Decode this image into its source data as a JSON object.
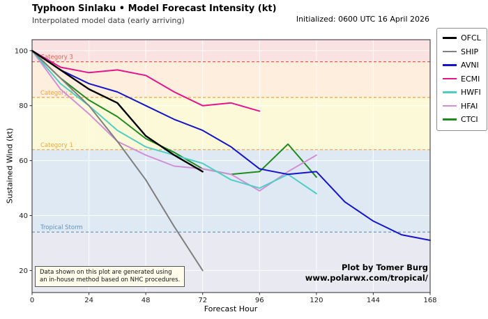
{
  "chart_data": {
    "type": "line",
    "title": "Typhoon Sinlaku • Model Forecast Intensity (kt)",
    "subtitle": "Interpolated model data (early arriving)",
    "initialized": "Initialized: 0600 UTC 16 April 2026",
    "xlabel": "Forecast Hour",
    "ylabel": "Sustained Wind (kt)",
    "xlim": [
      0,
      168
    ],
    "ylim": [
      12,
      104
    ],
    "xticks": [
      0,
      24,
      48,
      72,
      96,
      120,
      144,
      168
    ],
    "yticks": [
      20,
      40,
      60,
      80,
      100
    ],
    "grid": true,
    "grid_color": "#ffffff",
    "legend_position": "outside-right",
    "bands": [
      {
        "name": "category-3",
        "from": 96,
        "to": 104,
        "color": "#fae2e2"
      },
      {
        "name": "category-2",
        "from": 83,
        "to": 96,
        "color": "#fdeedd"
      },
      {
        "name": "category-1",
        "from": 64,
        "to": 83,
        "color": "#fcf9d8"
      },
      {
        "name": "tropical-storm",
        "from": 34,
        "to": 64,
        "color": "#dfe9f4"
      },
      {
        "name": "tropical-depression",
        "from": 12,
        "to": 34,
        "color": "#e9e9f2"
      }
    ],
    "thresholds": [
      {
        "name": "category-3",
        "value": 96,
        "label": "Category 3",
        "color": "#e2604d"
      },
      {
        "name": "category-2",
        "value": 83,
        "label": "Category 2",
        "color": "#f2a43c"
      },
      {
        "name": "category-1",
        "value": 64,
        "label": "Category 1",
        "color": "#f2a43c"
      },
      {
        "name": "tropical-storm",
        "value": 34,
        "label": "Tropical Storm",
        "color": "#5e93be"
      }
    ],
    "series": [
      {
        "name": "OFCL",
        "color": "#000000",
        "width": 2.4,
        "points": [
          [
            0,
            100
          ],
          [
            12,
            93
          ],
          [
            24,
            86
          ],
          [
            36,
            81
          ],
          [
            48,
            69
          ],
          [
            60,
            62
          ],
          [
            72,
            56
          ]
        ]
      },
      {
        "name": "SHIP",
        "color": "#7f7f7f",
        "width": 2,
        "points": [
          [
            0,
            100
          ],
          [
            12,
            90
          ],
          [
            24,
            80
          ],
          [
            36,
            67
          ],
          [
            48,
            53
          ],
          [
            60,
            36
          ],
          [
            72,
            20
          ]
        ]
      },
      {
        "name": "AVNI",
        "color": "#1414cd",
        "width": 2,
        "points": [
          [
            0,
            100
          ],
          [
            12,
            93
          ],
          [
            24,
            88
          ],
          [
            36,
            85
          ],
          [
            48,
            80
          ],
          [
            60,
            75
          ],
          [
            72,
            71
          ],
          [
            84,
            65
          ],
          [
            96,
            57
          ],
          [
            108,
            55
          ],
          [
            120,
            56
          ],
          [
            132,
            45
          ],
          [
            144,
            38
          ],
          [
            156,
            33
          ],
          [
            168,
            31
          ]
        ]
      },
      {
        "name": "ECMI",
        "color": "#e6148c",
        "width": 2,
        "points": [
          [
            0,
            100
          ],
          [
            12,
            94
          ],
          [
            24,
            92
          ],
          [
            36,
            93
          ],
          [
            48,
            91
          ],
          [
            60,
            85
          ],
          [
            72,
            80
          ],
          [
            84,
            81
          ],
          [
            96,
            78
          ]
        ]
      },
      {
        "name": "HWFI",
        "color": "#4ecfc4",
        "width": 2,
        "points": [
          [
            0,
            100
          ],
          [
            12,
            88
          ],
          [
            24,
            80
          ],
          [
            36,
            71
          ],
          [
            48,
            65
          ],
          [
            60,
            62
          ],
          [
            72,
            59
          ],
          [
            84,
            53
          ],
          [
            96,
            50
          ],
          [
            108,
            55
          ],
          [
            120,
            48
          ]
        ]
      },
      {
        "name": "HFAI",
        "color": "#d38ed8",
        "width": 2,
        "points": [
          [
            0,
            100
          ],
          [
            12,
            86
          ],
          [
            24,
            77
          ],
          [
            36,
            67
          ],
          [
            48,
            62
          ],
          [
            60,
            58
          ],
          [
            72,
            57
          ],
          [
            84,
            55
          ],
          [
            96,
            49
          ],
          [
            108,
            56
          ],
          [
            120,
            62
          ]
        ]
      },
      {
        "name": "CTCI",
        "color": "#1f8b1f",
        "width": 2,
        "points": [
          [
            0,
            100
          ],
          [
            12,
            90
          ],
          [
            24,
            82
          ],
          [
            36,
            76
          ],
          [
            48,
            68
          ],
          [
            60,
            63
          ],
          [
            72,
            57
          ],
          [
            84,
            55
          ],
          [
            96,
            56
          ],
          [
            108,
            66
          ],
          [
            120,
            54
          ]
        ]
      }
    ]
  },
  "note": {
    "line1": "Data shown on this plot are generated using",
    "line2": "an in-house method based on NHC procedures."
  },
  "credit": {
    "line1": "Plot by Tomer Burg",
    "line2": "www.polarwx.com/tropical/"
  }
}
